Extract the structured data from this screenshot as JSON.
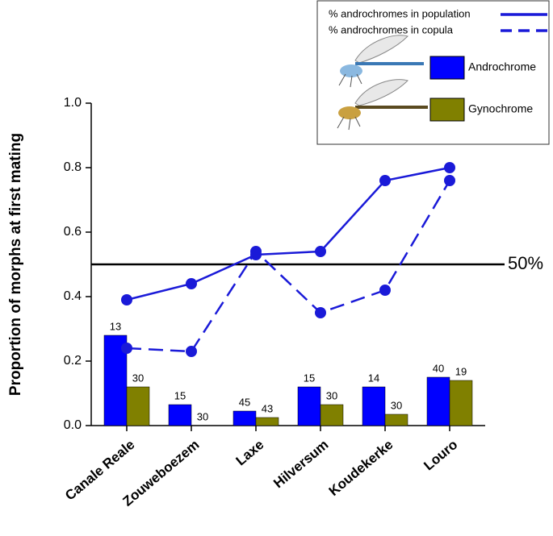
{
  "chart_data": {
    "type": "combo",
    "ylabel": "Proportion of morphs at first mating",
    "categories": [
      "Canale Reale",
      "Zouweboezem",
      "Laxe",
      "Hilversum",
      "Koudekerke",
      "Louro"
    ],
    "ylim": [
      0,
      1
    ],
    "yticks": [
      {
        "value": 0,
        "label": "0.0"
      },
      0.2,
      0.4,
      0.6,
      0.8,
      {
        "value": 1,
        "label": "1.0"
      }
    ],
    "reference_line": {
      "value": 0.5,
      "label": "50%"
    },
    "series": [
      {
        "name": "Androchrome",
        "type": "bar",
        "color": "#0000ff",
        "values": [
          0.28,
          0.065,
          0.045,
          0.12,
          0.12,
          0.15
        ],
        "sample_sizes": [
          13,
          15,
          45,
          15,
          14,
          40
        ]
      },
      {
        "name": "Gynochrome",
        "type": "bar",
        "color": "#808000",
        "values": [
          0.12,
          0,
          0.025,
          0.065,
          0.035,
          0.14
        ],
        "sample_sizes": [
          30,
          30,
          43,
          30,
          30,
          19
        ]
      },
      {
        "name": "% androchromes in population",
        "type": "line",
        "dashed": false,
        "color": "#1a1ad8",
        "values": [
          0.39,
          0.44,
          0.53,
          0.54,
          0.76,
          0.8
        ]
      },
      {
        "name": "% androchromes in copula",
        "type": "line",
        "dashed": true,
        "color": "#1a1ad8",
        "values": [
          0.24,
          0.23,
          0.54,
          0.35,
          0.42,
          0.76
        ]
      }
    ]
  }
}
